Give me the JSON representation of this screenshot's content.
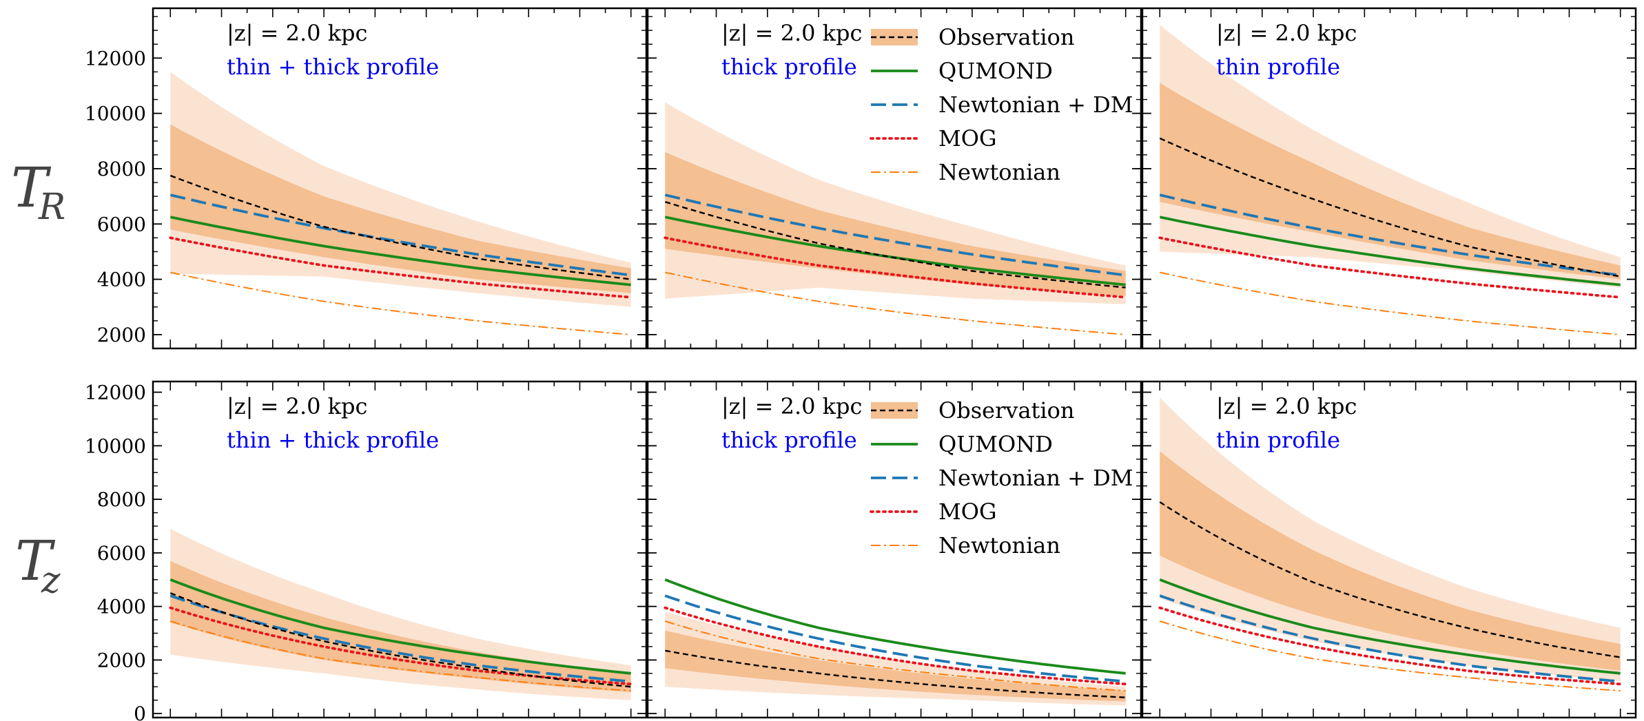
{
  "figure": {
    "row_labels": [
      {
        "main": "T",
        "sub": "R"
      },
      {
        "main": "T",
        "sub": "z"
      }
    ],
    "colors": {
      "observation_line": "#000000",
      "band_inner": "#f4bf91",
      "band_outer": "#fbe3d2",
      "qumond": "#1a8a1a",
      "newtonian_dm": "#1f77b4",
      "mog": "#e8141c",
      "newtonian": "#ff7f0e",
      "profile_text": "#0000ee"
    }
  },
  "chart_data": [
    {
      "type": "line",
      "row": 0,
      "col": 0,
      "annotation": "|z| = 2.0 kpc",
      "profile": "thin + thick profile",
      "ylim": [
        1500,
        13800
      ],
      "yticks": [
        2000,
        4000,
        6000,
        8000,
        10000,
        12000
      ],
      "xlim": [
        0.66,
        10.3
      ],
      "x": [
        1,
        4,
        7,
        10
      ],
      "legend": null,
      "series": [
        {
          "name": "Observation",
          "values": [
            7750,
            5900,
            4750,
            4000
          ]
        },
        {
          "name": "QUMOND",
          "values": [
            6250,
            5200,
            4400,
            3800
          ]
        },
        {
          "name": "Newtonian + DM",
          "values": [
            7050,
            5850,
            4900,
            4150
          ]
        },
        {
          "name": "MOG",
          "values": [
            5500,
            4500,
            3850,
            3350
          ]
        },
        {
          "name": "Newtonian",
          "values": [
            4250,
            3200,
            2500,
            2000
          ]
        }
      ],
      "band_inner": {
        "low": [
          5800,
          4800,
          4000,
          3500
        ],
        "high": [
          9600,
          7000,
          5400,
          4400
        ]
      },
      "band_outer": {
        "low": [
          4200,
          4100,
          3500,
          3000
        ],
        "high": [
          11500,
          8100,
          6100,
          4600
        ]
      }
    },
    {
      "type": "line",
      "row": 0,
      "col": 1,
      "annotation": "|z| = 2.0 kpc",
      "profile": "thick profile",
      "ylim": [
        1500,
        13800
      ],
      "yticks": [
        2000,
        4000,
        6000,
        8000,
        10000,
        12000
      ],
      "xlim": [
        0.66,
        10.3
      ],
      "x": [
        1,
        4,
        7,
        10
      ],
      "legend": {
        "location": "top-right",
        "entries": [
          "Observation",
          "QUMOND",
          "Newtonian + DM",
          "MOG",
          "Newtonian"
        ]
      },
      "series": [
        {
          "name": "Observation",
          "values": [
            6800,
            5300,
            4300,
            3700
          ]
        },
        {
          "name": "QUMOND",
          "values": [
            6250,
            5200,
            4400,
            3800
          ]
        },
        {
          "name": "Newtonian + DM",
          "values": [
            7050,
            5850,
            4900,
            4150
          ]
        },
        {
          "name": "MOG",
          "values": [
            5500,
            4500,
            3850,
            3350
          ]
        },
        {
          "name": "Newtonian",
          "values": [
            4250,
            3200,
            2500,
            2000
          ]
        }
      ],
      "band_inner": {
        "low": [
          5100,
          4400,
          3800,
          3400
        ],
        "high": [
          8600,
          6500,
          5200,
          4300
        ]
      },
      "band_outer": {
        "low": [
          3300,
          3700,
          3300,
          3100
        ],
        "high": [
          10400,
          7600,
          5900,
          4500
        ]
      }
    },
    {
      "type": "line",
      "row": 0,
      "col": 2,
      "annotation": "|z| = 2.0 kpc",
      "profile": "thin profile",
      "ylim": [
        1500,
        13800
      ],
      "yticks": [
        2000,
        4000,
        6000,
        8000,
        10000,
        12000
      ],
      "xlim": [
        0.66,
        10.3
      ],
      "x": [
        1,
        4,
        7,
        10
      ],
      "legend": null,
      "series": [
        {
          "name": "Observation",
          "values": [
            9100,
            6900,
            5200,
            4100
          ]
        },
        {
          "name": "QUMOND",
          "values": [
            6250,
            5200,
            4400,
            3800
          ]
        },
        {
          "name": "Newtonian + DM",
          "values": [
            7050,
            5850,
            4900,
            4150
          ]
        },
        {
          "name": "MOG",
          "values": [
            5500,
            4500,
            3850,
            3350
          ]
        },
        {
          "name": "Newtonian",
          "values": [
            4250,
            3200,
            2500,
            2000
          ]
        }
      ],
      "band_inner": {
        "low": [
          6800,
          5700,
          4700,
          4000
        ],
        "high": [
          11100,
          8200,
          5900,
          4500
        ]
      },
      "band_outer": {
        "low": [
          5000,
          4800,
          4300,
          3700
        ],
        "high": [
          13200,
          9400,
          6800,
          4800
        ]
      }
    },
    {
      "type": "line",
      "row": 1,
      "col": 0,
      "annotation": "|z| = 2.0 kpc",
      "profile": "thin + thick profile",
      "ylim": [
        -150,
        12400
      ],
      "yticks": [
        0,
        2000,
        4000,
        6000,
        8000,
        10000,
        12000
      ],
      "xlim": [
        0.66,
        10.3
      ],
      "x": [
        1,
        4,
        7,
        10
      ],
      "legend": null,
      "series": [
        {
          "name": "Observation",
          "values": [
            4500,
            2700,
            1700,
            1000
          ]
        },
        {
          "name": "QUMOND",
          "values": [
            5000,
            3200,
            2200,
            1500
          ]
        },
        {
          "name": "Newtonian + DM",
          "values": [
            4400,
            2800,
            1800,
            1200
          ]
        },
        {
          "name": "MOG",
          "values": [
            3950,
            2500,
            1600,
            1100
          ]
        },
        {
          "name": "Newtonian",
          "values": [
            3450,
            2050,
            1350,
            850
          ]
        }
      ],
      "band_inner": {
        "low": [
          3400,
          2000,
          1300,
          800
        ],
        "high": [
          5700,
          3600,
          2300,
          1500
        ]
      },
      "band_outer": {
        "low": [
          2200,
          1500,
          900,
          500
        ],
        "high": [
          6900,
          4500,
          2800,
          1800
        ]
      }
    },
    {
      "type": "line",
      "row": 1,
      "col": 1,
      "annotation": "|z| = 2.0 kpc",
      "profile": "thick profile",
      "ylim": [
        -150,
        12400
      ],
      "yticks": [
        0,
        2000,
        4000,
        6000,
        8000,
        10000,
        12000
      ],
      "xlim": [
        0.66,
        10.3
      ],
      "x": [
        1,
        4,
        7,
        10
      ],
      "legend": {
        "location": "top-right",
        "entries": [
          "Observation",
          "QUMOND",
          "Newtonian + DM",
          "MOG",
          "Newtonian"
        ]
      },
      "series": [
        {
          "name": "Observation",
          "values": [
            2350,
            1500,
            950,
            600
          ]
        },
        {
          "name": "QUMOND",
          "values": [
            5000,
            3200,
            2200,
            1500
          ]
        },
        {
          "name": "Newtonian + DM",
          "values": [
            4400,
            2800,
            1800,
            1200
          ]
        },
        {
          "name": "MOG",
          "values": [
            3950,
            2500,
            1600,
            1100
          ]
        },
        {
          "name": "Newtonian",
          "values": [
            3450,
            2050,
            1350,
            850
          ]
        }
      ],
      "band_inner": {
        "low": [
          1700,
          1100,
          700,
          450
        ],
        "high": [
          3100,
          2000,
          1300,
          850
        ]
      },
      "band_outer": {
        "low": [
          1000,
          700,
          500,
          300
        ],
        "high": [
          3800,
          2500,
          1600,
          1000
        ]
      }
    },
    {
      "type": "line",
      "row": 1,
      "col": 2,
      "annotation": "|z| = 2.0 kpc",
      "profile": "thin profile",
      "ylim": [
        -150,
        12400
      ],
      "yticks": [
        0,
        2000,
        4000,
        6000,
        8000,
        10000,
        12000
      ],
      "xlim": [
        0.66,
        10.3
      ],
      "x": [
        1,
        4,
        7,
        10
      ],
      "legend": null,
      "series": [
        {
          "name": "Observation",
          "values": [
            7900,
            4900,
            3200,
            2100
          ]
        },
        {
          "name": "QUMOND",
          "values": [
            5000,
            3200,
            2200,
            1500
          ]
        },
        {
          "name": "Newtonian + DM",
          "values": [
            4400,
            2800,
            1800,
            1200
          ]
        },
        {
          "name": "MOG",
          "values": [
            3950,
            2500,
            1600,
            1100
          ]
        },
        {
          "name": "Newtonian",
          "values": [
            3450,
            2050,
            1350,
            850
          ]
        }
      ],
      "band_inner": {
        "low": [
          5900,
          3700,
          2400,
          1600
        ],
        "high": [
          9800,
          6100,
          3900,
          2600
        ]
      },
      "band_outer": {
        "low": [
          4300,
          2700,
          1800,
          1200
        ],
        "high": [
          11800,
          7200,
          4700,
          3200
        ]
      }
    }
  ]
}
